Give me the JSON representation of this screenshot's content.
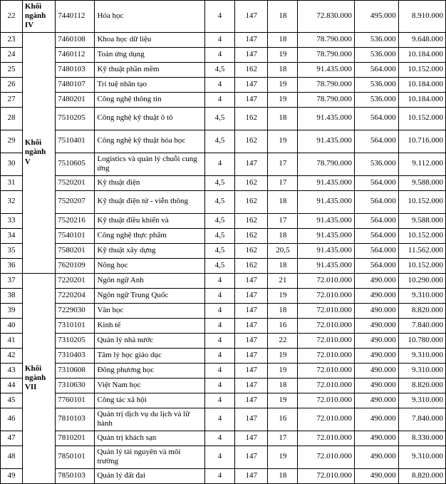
{
  "table": {
    "columns": [
      "idx",
      "group",
      "code",
      "name",
      "n1",
      "n2",
      "n3",
      "n4",
      "n5",
      "n6"
    ],
    "col_align": [
      "center",
      "left",
      "left",
      "left",
      "center",
      "center",
      "center",
      "right",
      "right",
      "right"
    ],
    "border_color": "#000000",
    "background_color": "#ffffff",
    "font_family": "Times New Roman",
    "font_size_pt": 9,
    "groups": [
      {
        "label": "Khối ngành IV",
        "start_idx": 22,
        "rowspan": 1
      },
      {
        "label": "Khối ngành V",
        "start_idx": 23,
        "rowspan": 14
      },
      {
        "label": "Khối ngành VII",
        "start_idx": 37,
        "rowspan": 13
      }
    ],
    "rows": [
      {
        "idx": "22",
        "group": "Khối ngành IV",
        "code": "7440112",
        "name": "Hóa học",
        "n1": "4",
        "n2": "147",
        "n3": "18",
        "n4": "72.830.000",
        "n5": "495.000",
        "n6": "8.910.000",
        "tall": true
      },
      {
        "idx": "23",
        "code": "7460108",
        "name": "Khoa học dữ liệu",
        "n1": "4",
        "n2": "147",
        "n3": "18",
        "n4": "78.790.000",
        "n5": "536.000",
        "n6": "9.648.000"
      },
      {
        "idx": "24",
        "code": "7460112",
        "name": "Toán ứng dụng",
        "n1": "4",
        "n2": "147",
        "n3": "19",
        "n4": "78.790.000",
        "n5": "536.000",
        "n6": "10.184.000"
      },
      {
        "idx": "25",
        "code": "7480103",
        "name": "Kỹ thuật phần mềm",
        "n1": "4,5",
        "n2": "162",
        "n3": "18",
        "n4": "91.435.000",
        "n5": "564.000",
        "n6": "10.152.000"
      },
      {
        "idx": "26",
        "code": "7480107",
        "name": "Trí tuệ nhân tạo",
        "n1": "4",
        "n2": "147",
        "n3": "19",
        "n4": "78.790.000",
        "n5": "536.000",
        "n6": "10.184.000"
      },
      {
        "idx": "27",
        "code": "7480201",
        "name": "Công nghệ thông tin",
        "n1": "4",
        "n2": "147",
        "n3": "19",
        "n4": "78.790.000",
        "n5": "536.000",
        "n6": "10.184.000"
      },
      {
        "idx": "28",
        "code": "7510205",
        "name": "Công nghệ kỹ thuật ô tô",
        "n1": "4,5",
        "n2": "162",
        "n3": "18",
        "n4": "91.435.000",
        "n5": "564.000",
        "n6": "10.152.000",
        "tall": true
      },
      {
        "idx": "29",
        "group": "Khối ngành V",
        "code": "7510401",
        "name": "Công nghệ kỹ thuật hóa học",
        "n1": "4,5",
        "n2": "162",
        "n3": "19",
        "n4": "91.435.000",
        "n5": "564.000",
        "n6": "10.716.000",
        "tall": true
      },
      {
        "idx": "30",
        "code": "7510605",
        "name": "Logistics và quản lý chuỗi cung ứng",
        "n1": "4",
        "n2": "147",
        "n3": "17",
        "n4": "78.790.000",
        "n5": "536.000",
        "n6": "9.112.000",
        "tall": true
      },
      {
        "idx": "31",
        "code": "7520201",
        "name": "Kỹ thuật điện",
        "n1": "4,5",
        "n2": "162",
        "n3": "17",
        "n4": "91.435.000",
        "n5": "564.000",
        "n6": "9.588.000"
      },
      {
        "idx": "32",
        "code": "7520207",
        "name": "Kỹ thuật điện tử - viễn thông",
        "n1": "4,5",
        "n2": "162",
        "n3": "18",
        "n4": "91.435.000",
        "n5": "564.000",
        "n6": "10.152.000",
        "tall": true
      },
      {
        "idx": "33",
        "code": "7520216",
        "name": "Kỹ thuật điều khiển và",
        "n1": "4,5",
        "n2": "162",
        "n3": "17",
        "n4": "91.435.000",
        "n5": "564.000",
        "n6": "9.588.000"
      },
      {
        "idx": "34",
        "code": "7540101",
        "name": "Công nghệ thực phẩm",
        "n1": "4,5",
        "n2": "162",
        "n3": "18",
        "n4": "91.435.000",
        "n5": "564.000",
        "n6": "10.152.000"
      },
      {
        "idx": "35",
        "code": "7580201",
        "name": "Kỹ thuật xây dựng",
        "n1": "4,5",
        "n2": "162",
        "n3": "20,5",
        "n4": "91.435.000",
        "n5": "564.000",
        "n6": "11.562.000"
      },
      {
        "idx": "36",
        "code": "7620109",
        "name": "Nông học",
        "n1": "4,5",
        "n2": "162",
        "n3": "18",
        "n4": "91.435.000",
        "n5": "564.000",
        "n6": "10.152.000"
      },
      {
        "idx": "37",
        "code": "7220201",
        "name": "Ngôn ngữ Anh",
        "n1": "4",
        "n2": "147",
        "n3": "21",
        "n4": "72.010.000",
        "n5": "490.000",
        "n6": "10.290.000"
      },
      {
        "idx": "38",
        "code": "7220204",
        "name": "Ngôn ngữ Trung Quốc",
        "n1": "4",
        "n2": "147",
        "n3": "19",
        "n4": "72.010.000",
        "n5": "490.000",
        "n6": "9.310.000"
      },
      {
        "idx": "39",
        "code": "7229030",
        "name": "Văn học",
        "n1": "4",
        "n2": "147",
        "n3": "18",
        "n4": "72.010.000",
        "n5": "490.000",
        "n6": "8.820.000"
      },
      {
        "idx": "40",
        "code": "7310101",
        "name": "Kinh tế",
        "n1": "4",
        "n2": "147",
        "n3": "16",
        "n4": "72.010.000",
        "n5": "490.000",
        "n6": "7.840.000"
      },
      {
        "idx": "41",
        "code": "7310205",
        "name": "Quản lý nhà nước",
        "n1": "4",
        "n2": "147",
        "n3": "22",
        "n4": "72.010.000",
        "n5": "490.000",
        "n6": "10.780.000"
      },
      {
        "idx": "42",
        "code": "7310403",
        "name": "Tâm lý học giáo dục",
        "n1": "4",
        "n2": "147",
        "n3": "19",
        "n4": "72.010.000",
        "n5": "490.000",
        "n6": "9.310.000"
      },
      {
        "idx": "43",
        "group": "Khối ngành VII",
        "code": "7310608",
        "name": "Đông phương học",
        "n1": "4",
        "n2": "147",
        "n3": "19",
        "n4": "72.010.000",
        "n5": "490.000",
        "n6": "9.310.000"
      },
      {
        "idx": "44",
        "code": "7310630",
        "name": "Việt Nam học",
        "n1": "4",
        "n2": "147",
        "n3": "18",
        "n4": "72.010.000",
        "n5": "490.000",
        "n6": "8.820.000"
      },
      {
        "idx": "45",
        "code": "7760101",
        "name": "Công tác xã hội",
        "n1": "4",
        "n2": "147",
        "n3": "19",
        "n4": "72.010.000",
        "n5": "490.000",
        "n6": "9.310.000"
      },
      {
        "idx": "46",
        "code": "7810103",
        "name": "Quản trị dịch vụ du lịch và lữ hành",
        "n1": "4",
        "n2": "147",
        "n3": "16",
        "n4": "72.010.000",
        "n5": "490.000",
        "n6": "7.840.000",
        "tall": true
      },
      {
        "idx": "47",
        "code": "7810201",
        "name": "Quản trị khách sạn",
        "n1": "4",
        "n2": "147",
        "n3": "17",
        "n4": "72.010.000",
        "n5": "490.000",
        "n6": "8.330.000"
      },
      {
        "idx": "48",
        "code": "7850101",
        "name": "Quản lý tài nguyên và môi trường",
        "n1": "4",
        "n2": "147",
        "n3": "19",
        "n4": "72.010.000",
        "n5": "490.000",
        "n6": "9.310.000",
        "tall": true
      },
      {
        "idx": "49",
        "code": "7850103",
        "name": "Quản lý đất đai",
        "n1": "4",
        "n2": "147",
        "n3": "18",
        "n4": "72.010.000",
        "n5": "490.000",
        "n6": "8.820.000"
      }
    ]
  }
}
